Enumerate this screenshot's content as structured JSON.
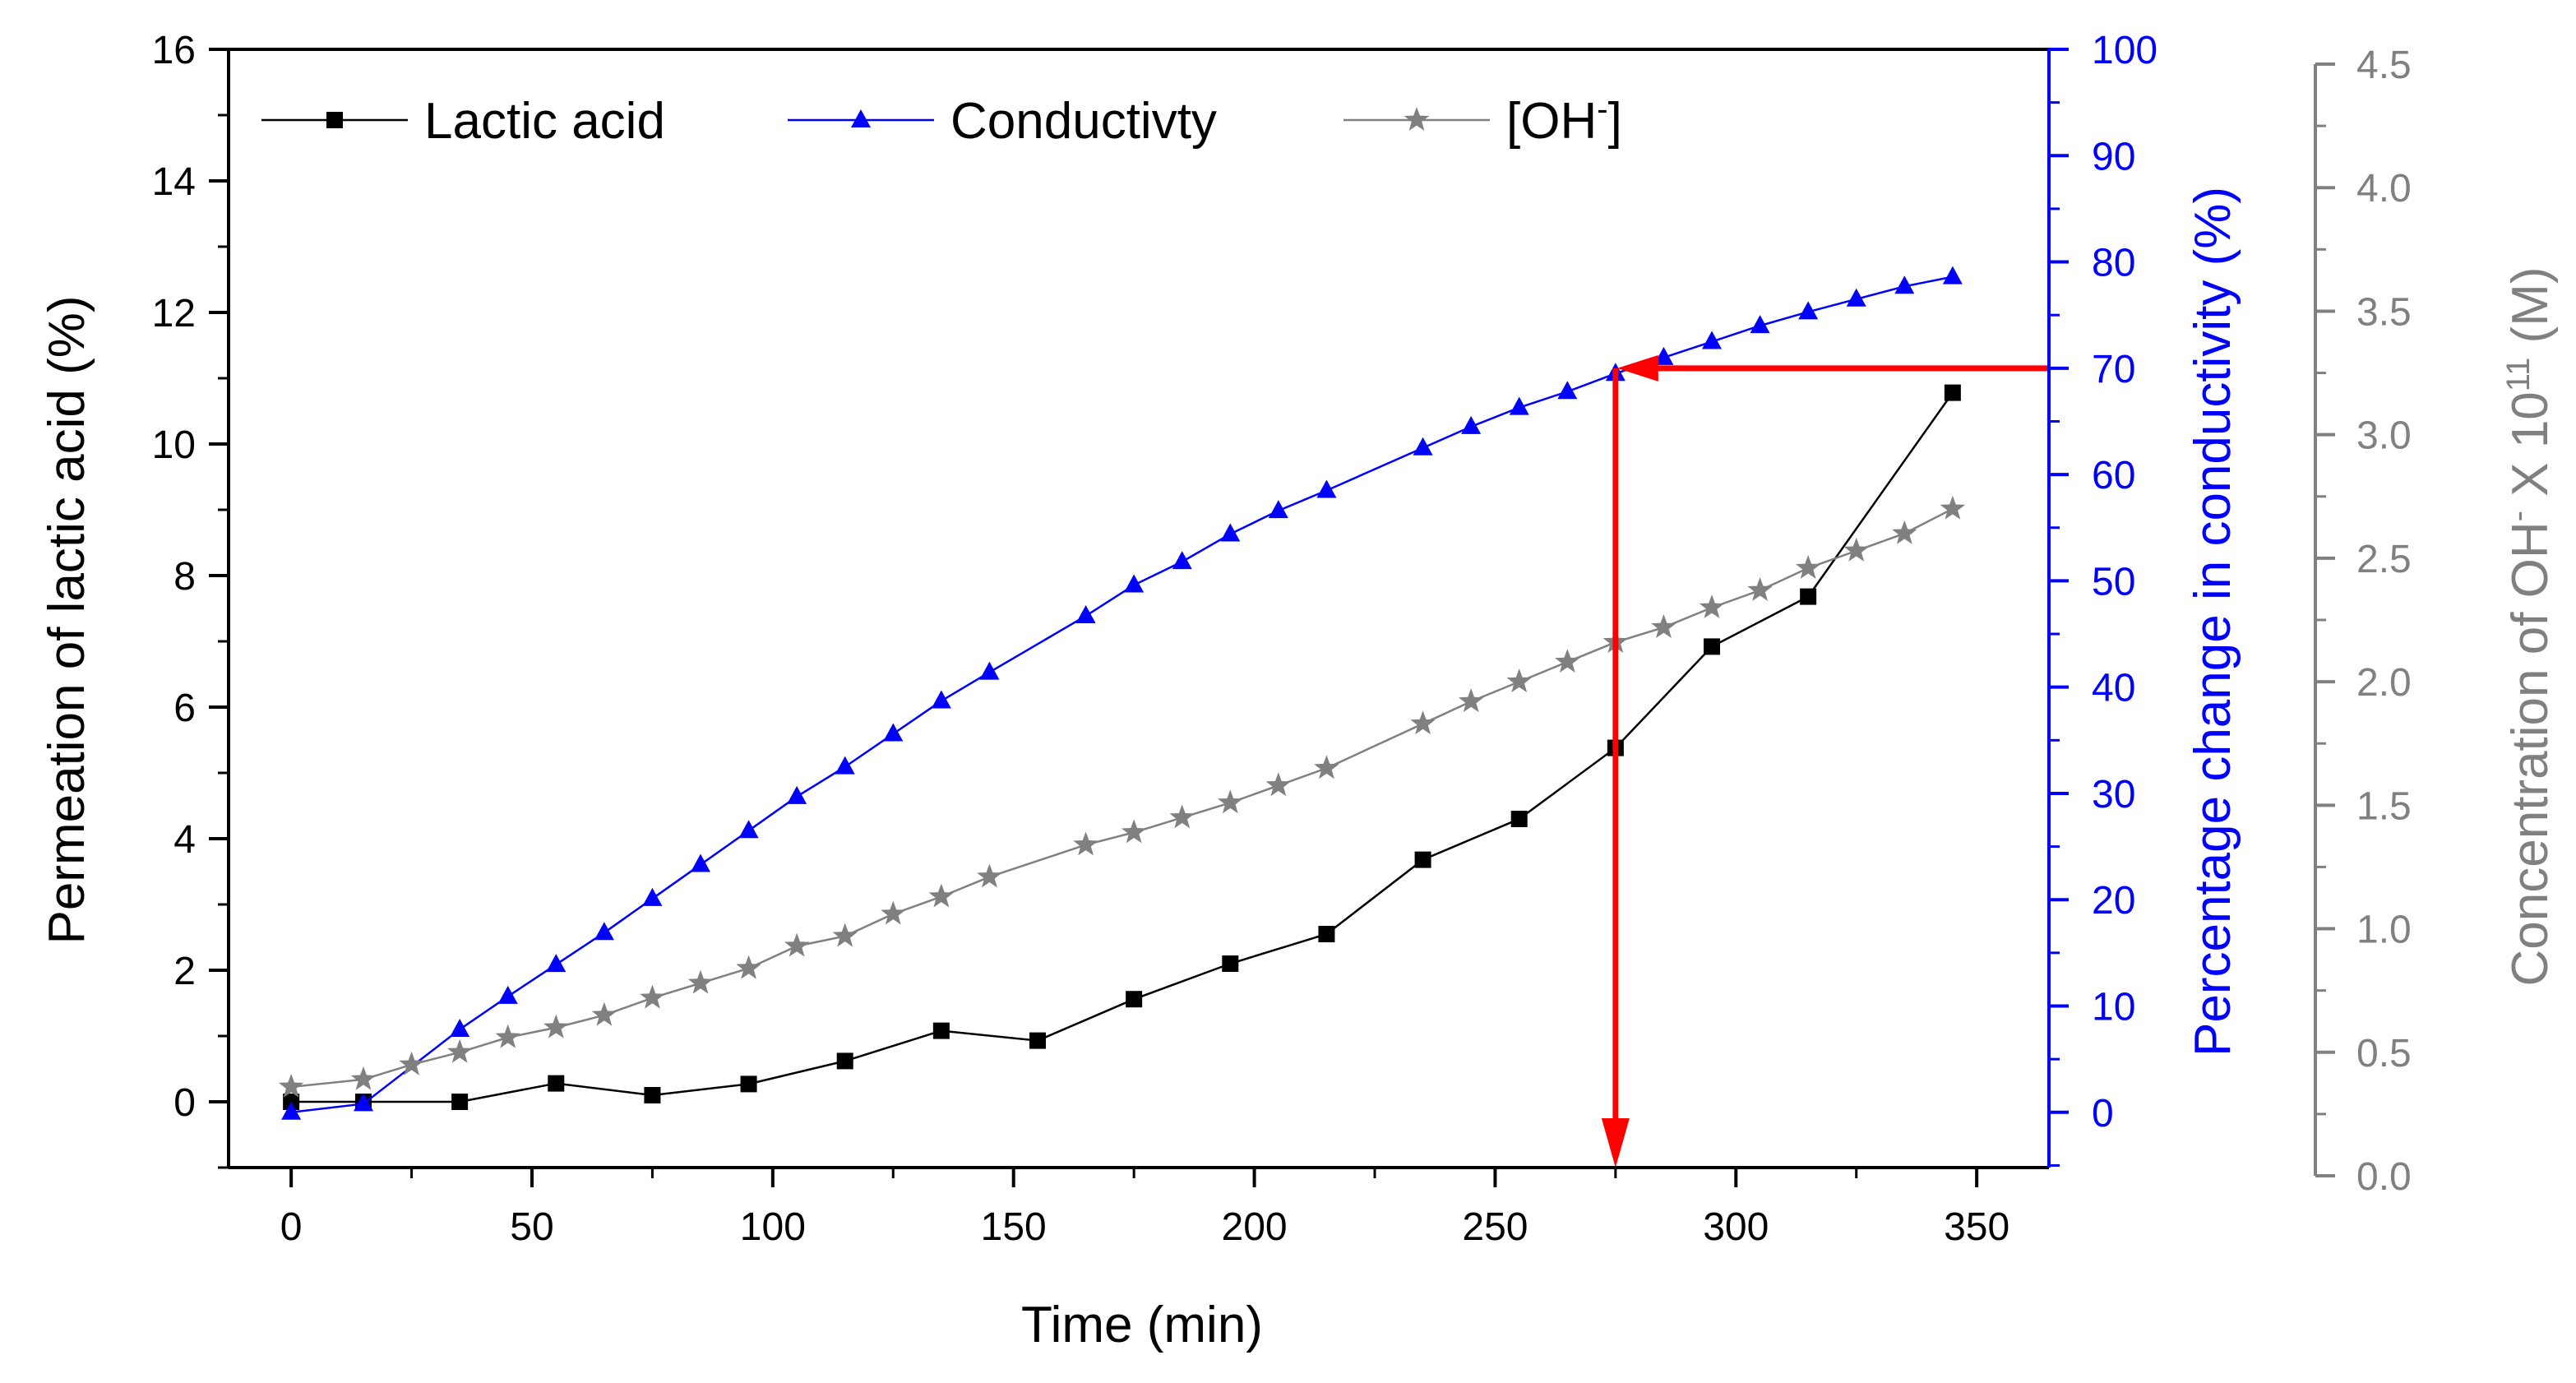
{
  "chart_data": {
    "type": "line",
    "x": {
      "label": "Time (min)",
      "range": [
        -13,
        365
      ],
      "ticks": [
        0,
        50,
        100,
        150,
        200,
        250,
        300,
        350
      ],
      "tick_labels": [
        "0",
        "50",
        "100",
        "150",
        "200",
        "250",
        "300",
        "350"
      ]
    },
    "y_left": {
      "label": "Permeation of lactic acid (%)",
      "range": [
        -1,
        16
      ],
      "ticks": [
        0,
        2,
        4,
        6,
        8,
        10,
        12,
        14,
        16
      ],
      "tick_labels": [
        "0",
        "2",
        "4",
        "6",
        "8",
        "10",
        "12",
        "14",
        "16"
      ],
      "color": "#000000"
    },
    "y_right1": {
      "label": "Percentage change in conductivity (%)",
      "range": [
        -5.2,
        100
      ],
      "ticks": [
        0,
        10,
        20,
        30,
        40,
        50,
        60,
        70,
        80,
        90,
        100
      ],
      "tick_labels": [
        "0",
        "10",
        "20",
        "30",
        "40",
        "50",
        "60",
        "70",
        "80",
        "90",
        "100"
      ],
      "color": "#0000ff"
    },
    "y_right2": {
      "label_main": "Concentration of OH",
      "label_sup1": "-",
      "label_mid": " X 10",
      "label_sup2": "11",
      "label_end": " (M)",
      "range": [
        0,
        4.5
      ],
      "ticks": [
        0.0,
        0.5,
        1.0,
        1.5,
        2.0,
        2.5,
        3.0,
        3.5,
        4.0,
        4.5
      ],
      "tick_labels": [
        "0.0",
        "0.5",
        "1.0",
        "1.5",
        "2.0",
        "2.5",
        "3.0",
        "3.5",
        "4.0",
        "4.5"
      ],
      "color": "#808080"
    },
    "series": [
      {
        "name": "Lactic acid",
        "axis": "left",
        "color": "#000000",
        "marker": "square",
        "x": [
          0,
          15,
          35,
          55,
          75,
          95,
          115,
          135,
          155,
          175,
          195,
          215,
          235,
          255,
          275,
          295,
          315,
          345
        ],
        "y": [
          0.0,
          0.0,
          0.0,
          0.28,
          0.1,
          0.27,
          0.62,
          1.08,
          0.93,
          1.56,
          2.1,
          2.55,
          3.68,
          4.3,
          5.38,
          6.92,
          7.68,
          10.78
        ]
      },
      {
        "name": "Conductivty",
        "axis": "right1",
        "color": "#0000ff",
        "marker": "triangle",
        "x": [
          0,
          15,
          35,
          45,
          55,
          65,
          75,
          85,
          95,
          105,
          115,
          125,
          135,
          145,
          165,
          175,
          185,
          195,
          205,
          215,
          235,
          245,
          255,
          265,
          275,
          285,
          295,
          305,
          315,
          325,
          335,
          345
        ],
        "y": [
          0.0,
          0.8,
          7.8,
          10.9,
          13.9,
          16.9,
          20.1,
          23.3,
          26.5,
          29.7,
          32.5,
          35.6,
          38.7,
          41.4,
          46.7,
          49.6,
          51.8,
          54.4,
          56.6,
          58.5,
          62.5,
          64.5,
          66.3,
          67.8,
          69.5,
          71.0,
          72.5,
          74.0,
          75.3,
          76.5,
          77.7,
          78.6
        ]
      },
      {
        "name": "[OH-]",
        "legend_text": "[OH",
        "legend_sup": "-",
        "legend_end": "]",
        "axis": "right2",
        "color": "#808080",
        "marker": "star",
        "x": [
          0,
          15,
          25,
          35,
          45,
          55,
          65,
          75,
          85,
          95,
          105,
          115,
          125,
          135,
          145,
          165,
          175,
          185,
          195,
          205,
          215,
          235,
          245,
          255,
          265,
          275,
          285,
          295,
          305,
          315,
          325,
          335,
          345
        ],
        "y": [
          0.36,
          0.39,
          0.45,
          0.5,
          0.56,
          0.6,
          0.65,
          0.72,
          0.78,
          0.84,
          0.93,
          0.97,
          1.06,
          1.13,
          1.21,
          1.34,
          1.39,
          1.45,
          1.51,
          1.58,
          1.65,
          1.83,
          1.92,
          2.0,
          2.08,
          2.16,
          2.22,
          2.3,
          2.37,
          2.46,
          2.53,
          2.6,
          2.7
        ]
      }
    ],
    "annotations": {
      "color": "#ff0000",
      "horizontal_arrow": {
        "from_x": 365,
        "to_x": 275,
        "y_conductivity": 70
      },
      "vertical_arrow": {
        "x": 275,
        "from_y_conductivity": 70,
        "to_y_conductivity": -5.2
      }
    },
    "legend": {
      "placement": "top-left"
    }
  }
}
